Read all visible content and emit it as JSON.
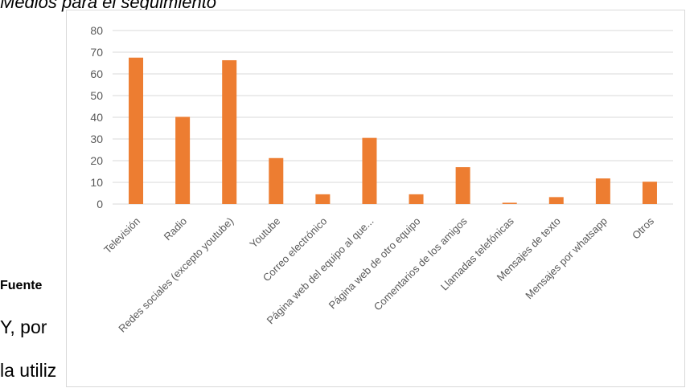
{
  "document": {
    "title_fragment": "Medios para el seguimiento",
    "source_fragment": "Fuente",
    "paragraph_line1": "Y, por",
    "paragraph_line2": "la utiliz"
  },
  "chart_data": {
    "type": "bar",
    "title": "",
    "xlabel": "",
    "ylabel": "",
    "ylim": [
      0,
      80
    ],
    "yticks": [
      0,
      10,
      20,
      30,
      40,
      50,
      60,
      70,
      80
    ],
    "grid": true,
    "legend": "none",
    "bar_color": "#ED7D31",
    "grid_color": "#D9D9D9",
    "categories": [
      "Televisión",
      "Radio",
      "Redes sociales (excepto youtube)",
      "Youtube",
      "Correo electrónico",
      "Página web del equipo al que...",
      "Página web de otro equipo",
      "Comentarios de los amigos",
      "Llamadas telefónicas",
      "Mensajes de texto",
      "Mensajes por whatsapp",
      "Otros"
    ],
    "values": [
      67.5,
      40.2,
      66.3,
      21.2,
      4.5,
      30.5,
      4.5,
      17.0,
      0.6,
      3.2,
      11.8,
      10.3
    ]
  }
}
